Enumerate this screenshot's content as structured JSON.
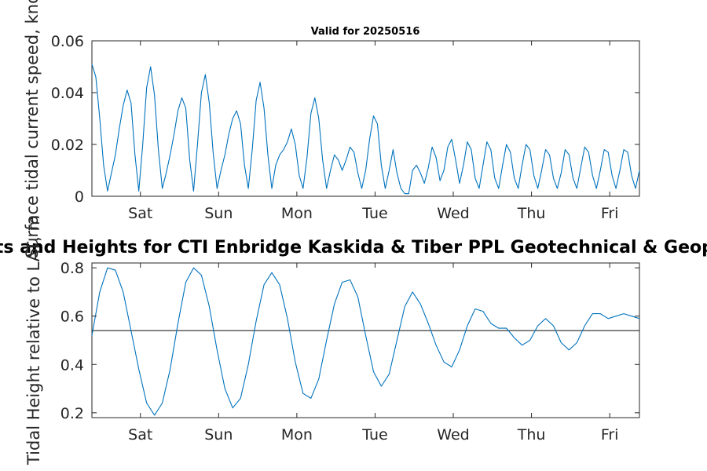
{
  "chart_data": [
    {
      "type": "line",
      "title": "Valid for 20250516",
      "ylabel": "Surface tidal current speed, knots",
      "xlabel": "",
      "ylim": [
        0,
        0.06
      ],
      "yticks": [
        0,
        0.02,
        0.04,
        0.06
      ],
      "ytick_labels": [
        "0",
        "0.02",
        "0.04",
        "0.06"
      ],
      "xlim": [
        0,
        7.0
      ],
      "xticks": [
        0.62,
        1.62,
        2.62,
        3.62,
        4.62,
        5.62,
        6.62
      ],
      "xtick_labels": [
        "Sat",
        "Sun",
        "Mon",
        "Tue",
        "Wed",
        "Thu",
        "Fri"
      ],
      "grid": false,
      "line_color": "#0072bd",
      "series": [
        {
          "x": [
            0.0,
            0.05,
            0.1,
            0.15,
            0.2,
            0.25,
            0.3,
            0.35,
            0.4,
            0.45,
            0.5,
            0.55,
            0.6,
            0.65,
            0.7,
            0.75,
            0.8,
            0.85,
            0.9,
            0.95,
            1.0,
            1.05,
            1.1,
            1.15,
            1.2,
            1.25,
            1.3,
            1.35,
            1.4,
            1.45,
            1.5,
            1.55,
            1.6,
            1.65,
            1.7,
            1.75,
            1.8,
            1.85,
            1.9,
            1.95,
            2.0,
            2.05,
            2.1,
            2.15,
            2.2,
            2.25,
            2.3,
            2.35,
            2.4,
            2.45,
            2.5,
            2.55,
            2.6,
            2.65,
            2.7,
            2.75,
            2.8,
            2.85,
            2.9,
            2.95,
            3.0,
            3.05,
            3.1,
            3.15,
            3.2,
            3.25,
            3.3,
            3.35,
            3.4,
            3.45,
            3.5,
            3.55,
            3.6,
            3.65,
            3.7,
            3.75,
            3.8,
            3.85,
            3.9,
            3.95,
            4.0,
            4.05,
            4.1,
            4.15,
            4.2,
            4.25,
            4.3,
            4.35,
            4.4,
            4.45,
            4.5,
            4.55,
            4.6,
            4.65,
            4.7,
            4.75,
            4.8,
            4.85,
            4.9,
            4.95,
            5.0,
            5.05,
            5.1,
            5.15,
            5.2,
            5.25,
            5.3,
            5.35,
            5.4,
            5.45,
            5.5,
            5.55,
            5.6,
            5.65,
            5.7,
            5.75,
            5.8,
            5.85,
            5.9,
            5.95,
            6.0,
            6.05,
            6.1,
            6.15,
            6.2,
            6.25,
            6.3,
            6.35,
            6.4,
            6.45,
            6.5,
            6.55,
            6.6,
            6.65,
            6.7,
            6.75,
            6.8,
            6.85,
            6.9,
            6.95,
            7.0
          ],
          "y": [
            0.051,
            0.046,
            0.03,
            0.012,
            0.002,
            0.009,
            0.016,
            0.026,
            0.035,
            0.041,
            0.036,
            0.016,
            0.002,
            0.02,
            0.042,
            0.05,
            0.039,
            0.018,
            0.003,
            0.009,
            0.016,
            0.024,
            0.033,
            0.038,
            0.034,
            0.014,
            0.002,
            0.02,
            0.04,
            0.047,
            0.036,
            0.017,
            0.003,
            0.01,
            0.016,
            0.024,
            0.03,
            0.033,
            0.028,
            0.012,
            0.003,
            0.018,
            0.037,
            0.044,
            0.034,
            0.016,
            0.003,
            0.012,
            0.016,
            0.018,
            0.021,
            0.026,
            0.02,
            0.008,
            0.003,
            0.015,
            0.032,
            0.038,
            0.03,
            0.014,
            0.003,
            0.01,
            0.016,
            0.014,
            0.01,
            0.014,
            0.019,
            0.017,
            0.009,
            0.003,
            0.01,
            0.022,
            0.031,
            0.028,
            0.012,
            0.003,
            0.01,
            0.018,
            0.009,
            0.003,
            0.001,
            0.001,
            0.01,
            0.012,
            0.009,
            0.005,
            0.011,
            0.019,
            0.015,
            0.006,
            0.01,
            0.019,
            0.022,
            0.014,
            0.005,
            0.012,
            0.021,
            0.018,
            0.007,
            0.003,
            0.012,
            0.021,
            0.018,
            0.007,
            0.003,
            0.012,
            0.02,
            0.017,
            0.007,
            0.003,
            0.012,
            0.02,
            0.018,
            0.008,
            0.003,
            0.01,
            0.018,
            0.016,
            0.007,
            0.003,
            0.009,
            0.018,
            0.016,
            0.007,
            0.003,
            0.011,
            0.019,
            0.017,
            0.008,
            0.003,
            0.01,
            0.018,
            0.017,
            0.008,
            0.003,
            0.01,
            0.018,
            0.017,
            0.008,
            0.003,
            0.01
          ]
        }
      ]
    },
    {
      "type": "line",
      "title": "Tidal Currents and Heights for CTI Enbridge  Kaskida & Tiber PPL Geotechnical & Geophysical Survey",
      "ylabel": "Tidal Height relative to LAT, m",
      "xlabel": "",
      "ylim": [
        0.18,
        0.82
      ],
      "yticks": [
        0.2,
        0.4,
        0.6,
        0.8
      ],
      "ytick_labels": [
        "0.2",
        "0.4",
        "0.6",
        "0.8"
      ],
      "xlim": [
        0,
        7.0
      ],
      "xticks": [
        0.62,
        1.62,
        2.62,
        3.62,
        4.62,
        5.62,
        6.62
      ],
      "xtick_labels": [
        "Sat",
        "Sun",
        "Mon",
        "Tue",
        "Wed",
        "Thu",
        "Fri"
      ],
      "grid": false,
      "line_color": "#0072bd",
      "reference_line": {
        "y": 0.54,
        "color": "#262626"
      },
      "series": [
        {
          "x": [
            0.0,
            0.1,
            0.2,
            0.3,
            0.4,
            0.5,
            0.6,
            0.7,
            0.8,
            0.9,
            1.0,
            1.1,
            1.2,
            1.3,
            1.4,
            1.5,
            1.6,
            1.7,
            1.8,
            1.9,
            2.0,
            2.1,
            2.2,
            2.3,
            2.4,
            2.5,
            2.6,
            2.7,
            2.8,
            2.9,
            3.0,
            3.1,
            3.2,
            3.3,
            3.4,
            3.5,
            3.6,
            3.7,
            3.8,
            3.9,
            4.0,
            4.1,
            4.2,
            4.3,
            4.4,
            4.5,
            4.6,
            4.7,
            4.8,
            4.9,
            5.0,
            5.1,
            5.2,
            5.3,
            5.4,
            5.5,
            5.6,
            5.7,
            5.8,
            5.9,
            6.0,
            6.1,
            6.2,
            6.3,
            6.4,
            6.5,
            6.6,
            6.7,
            6.8,
            6.9,
            7.0
          ],
          "y": [
            0.52,
            0.7,
            0.8,
            0.79,
            0.7,
            0.54,
            0.38,
            0.24,
            0.19,
            0.24,
            0.38,
            0.57,
            0.74,
            0.8,
            0.77,
            0.64,
            0.46,
            0.3,
            0.22,
            0.26,
            0.4,
            0.58,
            0.73,
            0.78,
            0.73,
            0.59,
            0.41,
            0.28,
            0.26,
            0.34,
            0.5,
            0.65,
            0.74,
            0.75,
            0.68,
            0.52,
            0.37,
            0.31,
            0.36,
            0.5,
            0.64,
            0.7,
            0.65,
            0.57,
            0.48,
            0.41,
            0.39,
            0.46,
            0.56,
            0.63,
            0.62,
            0.57,
            0.55,
            0.55,
            0.51,
            0.48,
            0.5,
            0.56,
            0.59,
            0.56,
            0.49,
            0.46,
            0.49,
            0.56,
            0.61,
            0.61,
            0.59,
            0.6,
            0.61,
            0.6,
            0.59
          ]
        }
      ]
    }
  ]
}
